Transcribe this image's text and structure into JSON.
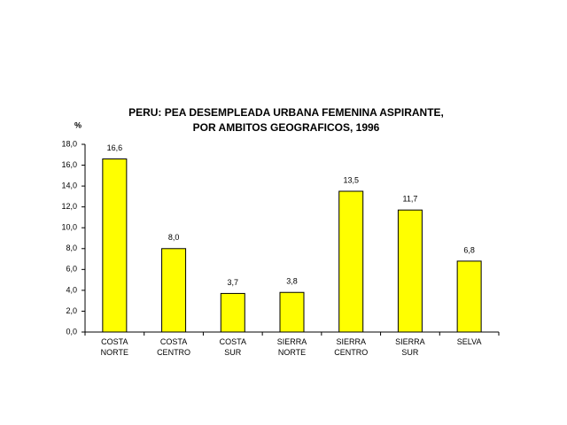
{
  "chart_data": {
    "type": "bar",
    "title": [
      "PERU: PEA DESEMPLEADA URBANA FEMENINA ASPIRANTE,",
      "POR AMBITOS GEOGRAFICOS, 1996"
    ],
    "y_label": "%",
    "categories": [
      "COSTA NORTE",
      "COSTA CENTRO",
      "COSTA SUR",
      "SIERRA NORTE",
      "SIERRA CENTRO",
      "SIERRA SUR",
      "SELVA"
    ],
    "values": [
      16.6,
      8.0,
      3.7,
      3.8,
      13.5,
      11.7,
      6.8
    ],
    "value_labels": [
      "16,6",
      "8,0",
      "3,7",
      "3,8",
      "13,5",
      "11,7",
      "6,8"
    ],
    "color": "#ffff00",
    "ylim": [
      0,
      18
    ],
    "yticks": [
      {
        "value": 0,
        "label": "0,0"
      },
      {
        "value": 2,
        "label": "2,0"
      },
      {
        "value": 4,
        "label": "4,0"
      },
      {
        "value": 6,
        "label": "6,0"
      },
      {
        "value": 8,
        "label": "8,0"
      },
      {
        "value": 10,
        "label": "10,0"
      },
      {
        "value": 12,
        "label": "12,0"
      },
      {
        "value": 14,
        "label": "14,0"
      },
      {
        "value": 16,
        "label": "16,0"
      },
      {
        "value": 18,
        "label": "18,0"
      }
    ],
    "grid": false
  }
}
